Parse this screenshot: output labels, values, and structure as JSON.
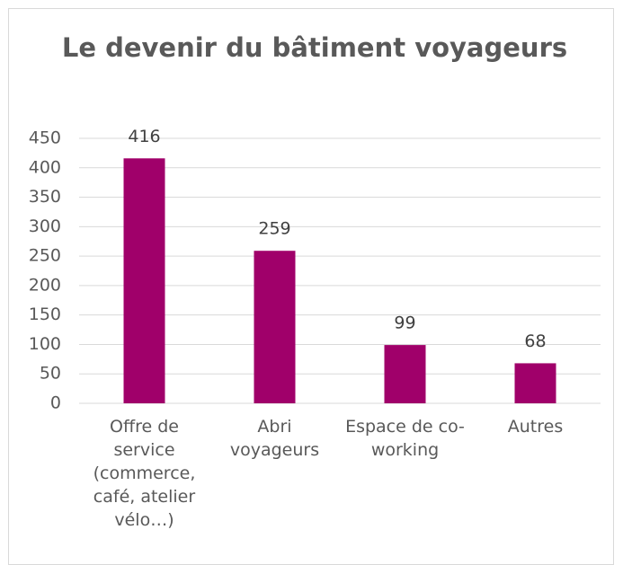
{
  "chart_data": {
    "type": "bar",
    "title": "Le devenir du bâtiment voyageurs",
    "categories": [
      "Offre de service (commerce, café, atelier vélo…)",
      "Abri voyageurs",
      "Espace de co-working",
      "Autres"
    ],
    "values": [
      416,
      259,
      99,
      68
    ],
    "color": "#a0006a",
    "ylim": [
      0,
      450
    ],
    "yticks": [
      0,
      50,
      100,
      150,
      200,
      250,
      300,
      350,
      400,
      450
    ],
    "grid": true
  }
}
